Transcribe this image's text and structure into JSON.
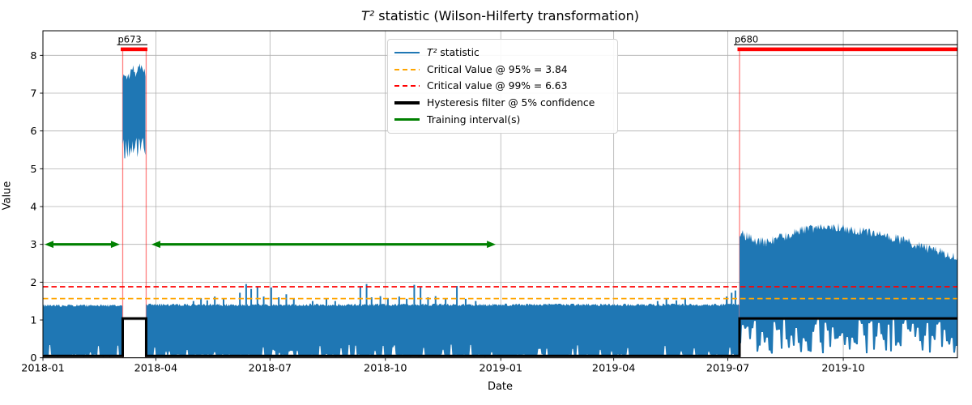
{
  "chart_data": {
    "type": "line",
    "title_math": "T²",
    "title_rest": " statistic (Wilson-Hilferty transformation)",
    "xlabel": "Date",
    "ylabel": "Value",
    "ylim": [
      0,
      8.65
    ],
    "yticks": [
      0,
      1,
      2,
      3,
      4,
      5,
      6,
      7,
      8
    ],
    "x_total_days": 729,
    "xticks": [
      {
        "label": "2018-01",
        "day": 0
      },
      {
        "label": "2018-04",
        "day": 90
      },
      {
        "label": "2018-07",
        "day": 181
      },
      {
        "label": "2018-10",
        "day": 273
      },
      {
        "label": "2019-01",
        "day": 365
      },
      {
        "label": "2019-04",
        "day": 455
      },
      {
        "label": "2019-07",
        "day": 546
      },
      {
        "label": "2019-10",
        "day": 638
      }
    ],
    "grid": true,
    "grid_color": "#b0b0b0",
    "legend_position": "upper center-left",
    "legend_items": [
      {
        "math": "T²",
        "label": " statistic",
        "color": "#1f77b4",
        "type": "solid",
        "lw": 2
      },
      {
        "math": "",
        "label": "Critical Value @ 95% = 3.84",
        "color": "#ffa500",
        "type": "dashed",
        "lw": 2
      },
      {
        "math": "",
        "label": "Critical value @ 99% = 6.63",
        "color": "#ff0000",
        "type": "dashed",
        "lw": 2
      },
      {
        "math": "",
        "label": "Hysteresis filter @ 5% confidence",
        "color": "#000000",
        "type": "solid",
        "lw": 4
      },
      {
        "math": "",
        "label": "Training interval(s)",
        "color": "#008000",
        "type": "solid",
        "lw": 3
      }
    ],
    "series": {
      "t2": {
        "name": "T² statistic",
        "color": "#1f77b4",
        "bands": [
          {
            "start_day": 0,
            "end_day": 63.6,
            "top_env": [
              [
                0,
                1.38
              ],
              [
                63.6,
                1.38
              ]
            ],
            "top_noise": 0.035,
            "bottom_style": "floor"
          },
          {
            "start_day": 63.6,
            "end_day": 82.3,
            "top_env": [
              [
                63.6,
                7.35
              ],
              [
                66,
                7.5
              ],
              [
                68,
                7.42
              ],
              [
                70,
                7.55
              ],
              [
                72,
                7.62
              ],
              [
                74,
                7.5
              ],
              [
                76,
                7.6
              ],
              [
                78,
                7.72
              ],
              [
                80,
                7.65
              ],
              [
                82.3,
                7.5
              ]
            ],
            "top_noise": 0.12,
            "bottom_style": "band",
            "bottom_base": 5.55,
            "bottom_noise": 0.28
          },
          {
            "start_day": 82.3,
            "end_day": 555.3,
            "top_env": [
              [
                82.3,
                1.4
              ],
              [
                555.3,
                1.4
              ]
            ],
            "top_noise": 0.035,
            "bottom_style": "floor"
          },
          {
            "start_day": 555.3,
            "end_day": 729,
            "top_env": [
              [
                555.3,
                3.32
              ],
              [
                566,
                3.12
              ],
              [
                576,
                3.04
              ],
              [
                590,
                3.2
              ],
              [
                604,
                3.35
              ],
              [
                618,
                3.42
              ],
              [
                632,
                3.45
              ],
              [
                646,
                3.38
              ],
              [
                660,
                3.32
              ],
              [
                674,
                3.2
              ],
              [
                688,
                3.08
              ],
              [
                702,
                2.92
              ],
              [
                716,
                2.78
              ],
              [
                729,
                2.62
              ]
            ],
            "top_noise": 0.13,
            "bottom_style": "striped"
          }
        ],
        "spike_base": 1.36,
        "spikes": [
          [
            120,
            1.5
          ],
          [
            126,
            1.58
          ],
          [
            131,
            1.52
          ],
          [
            137,
            1.62
          ],
          [
            144,
            1.55
          ],
          [
            157,
            1.72
          ],
          [
            162,
            1.95
          ],
          [
            166,
            1.82
          ],
          [
            171,
            1.88
          ],
          [
            176,
            1.62
          ],
          [
            182,
            1.86
          ],
          [
            188,
            1.6
          ],
          [
            194,
            1.68
          ],
          [
            200,
            1.56
          ],
          [
            215,
            1.5
          ],
          [
            226,
            1.55
          ],
          [
            233,
            1.5
          ],
          [
            253,
            1.87
          ],
          [
            258,
            1.95
          ],
          [
            262,
            1.6
          ],
          [
            269,
            1.63
          ],
          [
            275,
            1.58
          ],
          [
            284,
            1.62
          ],
          [
            290,
            1.56
          ],
          [
            296,
            1.93
          ],
          [
            301,
            1.86
          ],
          [
            307,
            1.6
          ],
          [
            313,
            1.63
          ],
          [
            321,
            1.55
          ],
          [
            330,
            1.9
          ],
          [
            337,
            1.56
          ],
          [
            345,
            1.5
          ],
          [
            490,
            1.5
          ],
          [
            497,
            1.55
          ],
          [
            505,
            1.52
          ],
          [
            512,
            1.55
          ],
          [
            545,
            1.62
          ],
          [
            549,
            1.72
          ],
          [
            552,
            1.78
          ]
        ]
      },
      "critical_95": {
        "label": "Critical Value @ 95% = 3.84",
        "value": 3.84,
        "plot_y": 1.566,
        "color": "#ffa500",
        "style": "dashed"
      },
      "critical_99": {
        "label": "Critical value @ 99% = 6.63",
        "value": 6.63,
        "plot_y": 1.879,
        "color": "#ff0000",
        "style": "dashed"
      },
      "hysteresis": {
        "label": "Hysteresis filter @ 5% confidence",
        "color": "#000000",
        "low": 0.05,
        "high": 1.04,
        "high_intervals_days": [
          [
            63.6,
            82.3
          ],
          [
            555.3,
            729
          ]
        ]
      },
      "training": {
        "label": "Training interval(s)",
        "color": "#008000",
        "y": 3,
        "intervals_days": [
          [
            1.3,
            61.3
          ],
          [
            86.5,
            361
          ]
        ]
      }
    },
    "anomalies": [
      {
        "label": "p673",
        "start_day": 63.6,
        "end_day": 82.3,
        "bar_y": 8.16,
        "bar_color": "#ff0000"
      },
      {
        "label": "p680",
        "start_day": 555.3,
        "end_day": 729,
        "bar_y": 8.16,
        "bar_color": "#ff0000"
      }
    ],
    "anomaly_boundary_line_color": "rgba(255,0,0,0.5)"
  }
}
